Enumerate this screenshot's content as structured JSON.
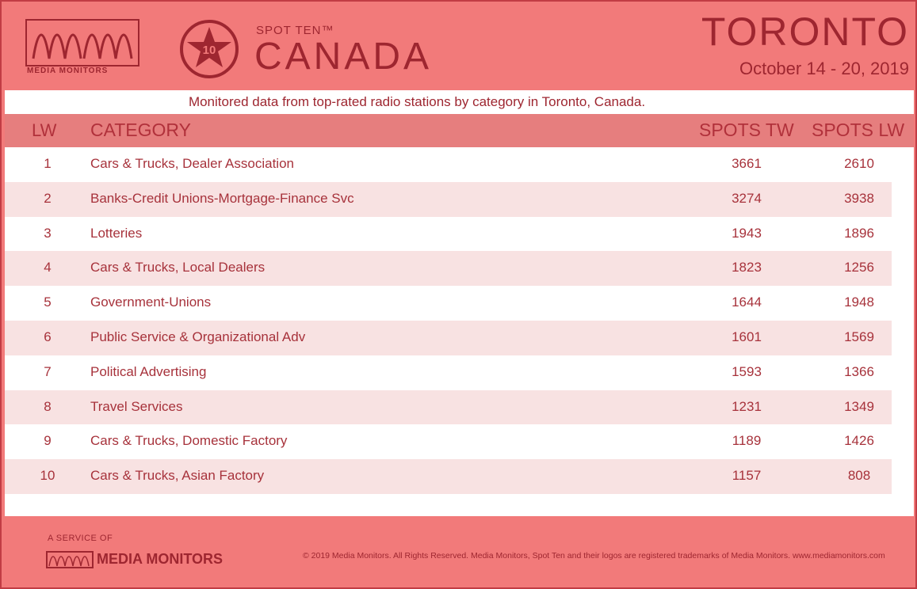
{
  "header": {
    "logo_text": "MEDIA MONITORS",
    "badge_number": "10",
    "spot_ten_label": "SPOT TEN™",
    "title": "CANADA",
    "city": "TORONTO",
    "dates": "October 14 - 20, 2019"
  },
  "subtitle": "Monitored data from top-rated radio stations by category in Toronto, Canada.",
  "table": {
    "columns": {
      "lw": "LW",
      "category": "CATEGORY",
      "spots_tw": "SPOTS TW",
      "spots_lw": "SPOTS LW"
    },
    "rows": [
      {
        "lw": "1",
        "category": "Cars & Trucks, Dealer Association",
        "spots_tw": "3661",
        "spots_lw": "2610"
      },
      {
        "lw": "2",
        "category": "Banks-Credit Unions-Mortgage-Finance Svc",
        "spots_tw": "3274",
        "spots_lw": "3938"
      },
      {
        "lw": "3",
        "category": "Lotteries",
        "spots_tw": "1943",
        "spots_lw": "1896"
      },
      {
        "lw": "4",
        "category": "Cars & Trucks, Local Dealers",
        "spots_tw": "1823",
        "spots_lw": "1256"
      },
      {
        "lw": "5",
        "category": "Government-Unions",
        "spots_tw": "1644",
        "spots_lw": "1948"
      },
      {
        "lw": "6",
        "category": "Public Service & Organizational Adv",
        "spots_tw": "1601",
        "spots_lw": "1569"
      },
      {
        "lw": "7",
        "category": "Political Advertising",
        "spots_tw": "1593",
        "spots_lw": "1366"
      },
      {
        "lw": "8",
        "category": "Travel Services",
        "spots_tw": "1231",
        "spots_lw": "1349"
      },
      {
        "lw": "9",
        "category": "Cars & Trucks, Domestic Factory",
        "spots_tw": "1189",
        "spots_lw": "1426"
      },
      {
        "lw": "10",
        "category": "Cars & Trucks, Asian Factory",
        "spots_tw": "1157",
        "spots_lw": "808"
      }
    ]
  },
  "footer": {
    "service_of": "A SERVICE OF",
    "brand": "MEDIA MONITORS",
    "copyright": "© 2019 Media Monitors. All Rights Reserved. Media Monitors, Spot Ten and their logos are registered trademarks of Media Monitors. www.mediamonitors.com"
  },
  "colors": {
    "background": "#f27a7a",
    "accent": "#9e2630",
    "row_alt": "#f8e2e2",
    "header_band": "#e67e7e"
  }
}
